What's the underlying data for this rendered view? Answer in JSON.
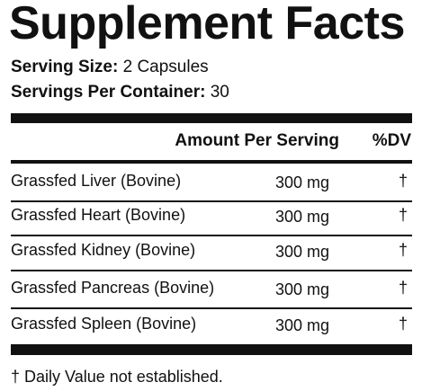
{
  "header": {
    "title": "Supplement Facts",
    "serving_size": {
      "label": "Serving Size:",
      "value": "2 Capsules"
    },
    "servings_per_container": {
      "label": "Servings Per Container:",
      "value": "30"
    }
  },
  "table": {
    "columns": [
      "Amount Per Serving",
      "%DV"
    ],
    "rows": [
      [
        "Grassfed Liver (Bovine)",
        "300 mg",
        "†"
      ],
      [
        "Grassfed Heart (Bovine)",
        "300 mg",
        "†"
      ],
      [
        "Grassfed Kidney (Bovine)",
        "300 mg",
        "†"
      ],
      [
        "Grassfed Pancreas (Bovine)",
        "300 mg",
        "†"
      ],
      [
        "Grassfed Spleen (Bovine)",
        "300 mg",
        "†"
      ]
    ]
  },
  "footnote": "† Daily Value not established."
}
